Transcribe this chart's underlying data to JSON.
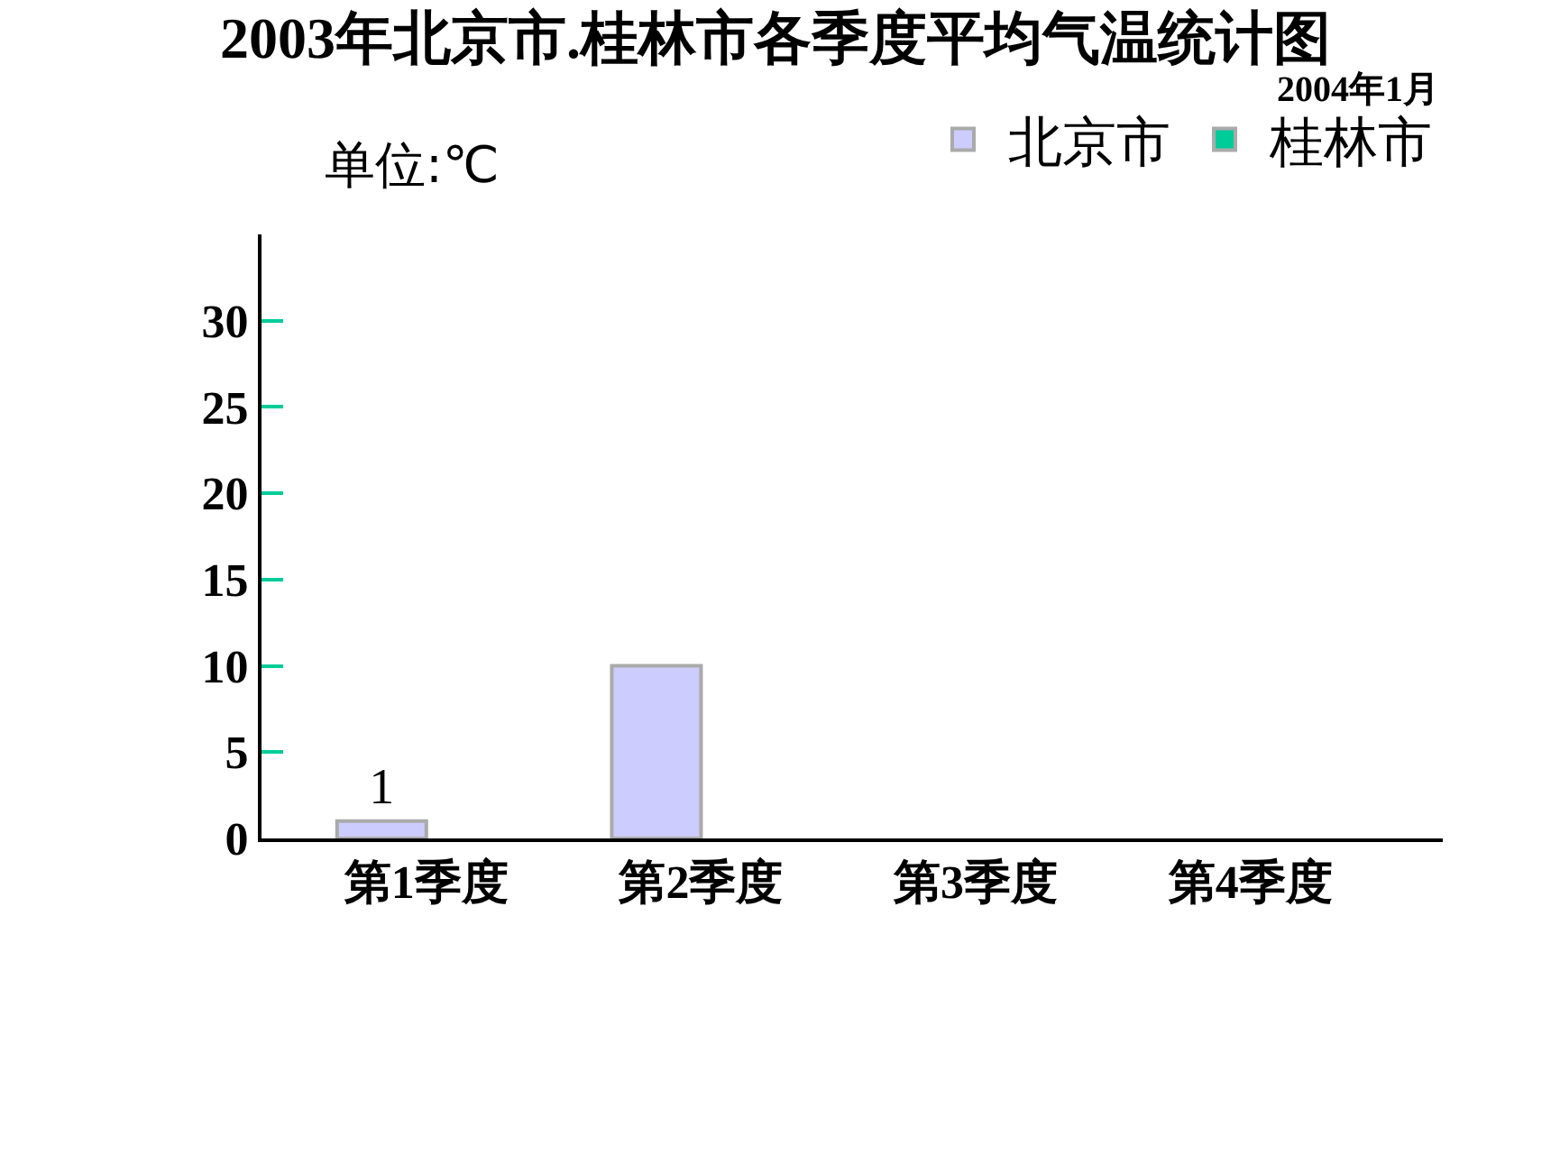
{
  "chart_data": {
    "type": "bar",
    "title": "2003年北京市.桂林市各季度平均气温统计图",
    "annotations": [
      "2004年1月",
      "单位:℃"
    ],
    "categories": [
      "第1季度",
      "第2季度",
      "第3季度",
      "第4季度"
    ],
    "series": [
      {
        "name": "北京市",
        "color": "#ccccff",
        "values": [
          1,
          10,
          null,
          null
        ],
        "value_labels": [
          "1",
          null,
          null,
          null
        ]
      },
      {
        "name": "桂林市",
        "color": "#00cc99",
        "values": [
          null,
          null,
          null,
          null
        ]
      }
    ],
    "ylim": [
      0,
      35
    ],
    "yticks": [
      0,
      5,
      10,
      15,
      20,
      25,
      30
    ],
    "legend": "top right"
  }
}
